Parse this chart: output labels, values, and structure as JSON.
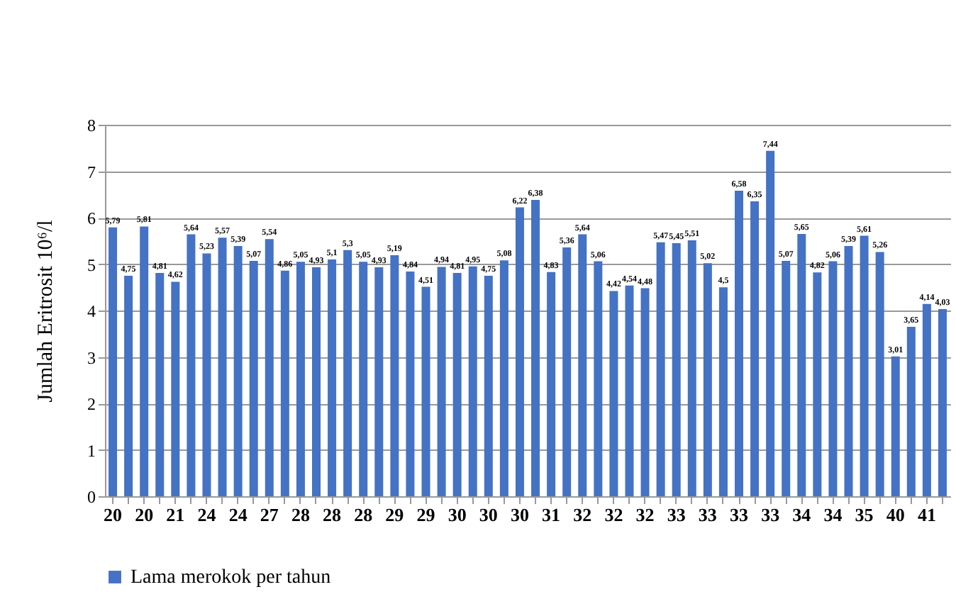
{
  "chart_data": {
    "type": "bar",
    "ylabel": "Jumlah Eritrosit 10⁶/l",
    "categories": [
      "20",
      null,
      "20",
      null,
      "21",
      null,
      "24",
      null,
      "24",
      null,
      "27",
      null,
      "28",
      null,
      "28",
      null,
      "28",
      null,
      "29",
      null,
      "29",
      null,
      "30",
      null,
      "30",
      null,
      "30",
      null,
      "31",
      null,
      "32",
      null,
      "32",
      null,
      "32",
      null,
      "33",
      null,
      "33",
      null,
      "33",
      null,
      "33",
      null,
      "34",
      null,
      "34",
      null,
      "35",
      null,
      "40",
      null,
      "41",
      null
    ],
    "series": [
      {
        "name": "Lama merokok per tahun",
        "color": "#4472c4",
        "values": [
          5.79,
          4.75,
          5.81,
          4.81,
          4.62,
          5.64,
          5.23,
          5.57,
          5.39,
          5.07,
          5.54,
          4.86,
          5.05,
          4.93,
          5.1,
          5.3,
          5.05,
          4.93,
          5.19,
          4.84,
          4.51,
          4.94,
          4.81,
          4.95,
          4.75,
          5.08,
          6.22,
          6.38,
          4.83,
          5.36,
          5.64,
          5.06,
          4.42,
          4.54,
          4.48,
          5.47,
          5.45,
          5.51,
          5.02,
          4.5,
          6.58,
          6.35,
          7.44,
          5.07,
          5.65,
          4.82,
          5.06,
          5.39,
          5.61,
          5.26,
          3.01,
          3.65,
          4.14,
          4.03
        ],
        "value_labels": [
          "5,79",
          "4,75",
          "5,81",
          "4,81",
          "4,62",
          "5,64",
          "5,23",
          "5,57",
          "5,39",
          "5,07",
          "5,54",
          "4,86",
          "5,05",
          "4,93",
          "5,1",
          "5,3",
          "5,05",
          "4,93",
          "5,19",
          "4,84",
          "4,51",
          "4,94",
          "4,81",
          "4,95",
          "4,75",
          "5,08",
          "6,22",
          "6,38",
          "4,83",
          "5,36",
          "5,64",
          "5,06",
          "4,42",
          "4,54",
          "4,48",
          "5,47",
          "5,45",
          "5,51",
          "5,02",
          "4,5",
          "6,58",
          "6,35",
          "7,44",
          "5,07",
          "5,65",
          "4,82",
          "5,06",
          "5,39",
          "5,61",
          "5,26",
          "3,01",
          "3,65",
          "4,14",
          "4,03"
        ]
      }
    ],
    "ylim": [
      0,
      8
    ],
    "yticks": [
      0,
      1,
      2,
      3,
      4,
      5,
      6,
      7,
      8
    ],
    "grid": "y",
    "legend": "bottom"
  }
}
